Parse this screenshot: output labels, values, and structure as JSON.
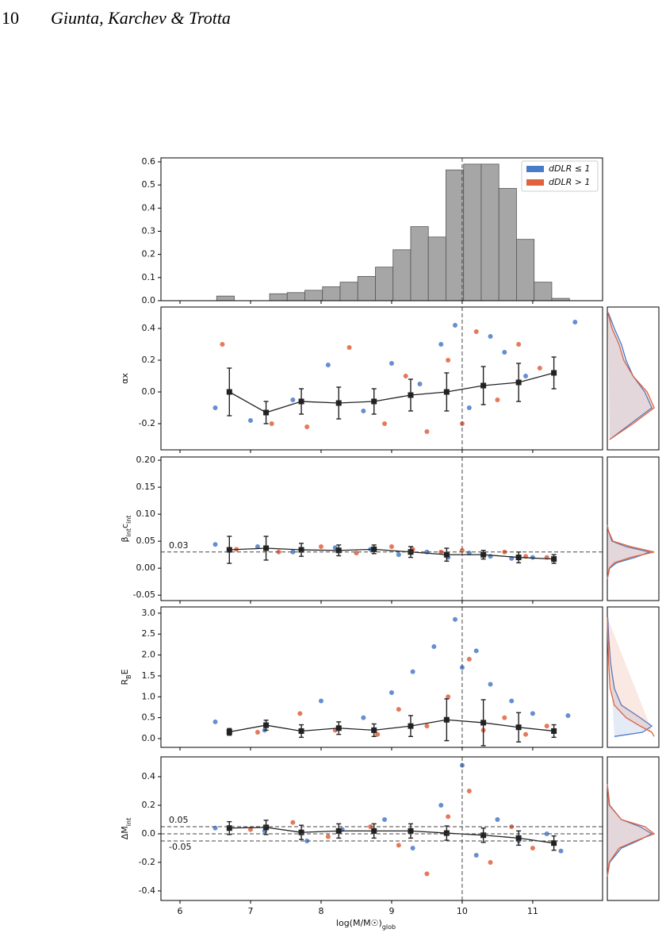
{
  "page_header": {
    "number": "10",
    "authors": "Giunta, Karchev & Trotta"
  },
  "chart_data": [
    {
      "type": "histogram",
      "color": "#a6a6a6",
      "bins": [
        6.52,
        6.77,
        7.02,
        7.27,
        7.52,
        7.77,
        8.02,
        8.27,
        8.52,
        8.77,
        9.02,
        9.27,
        9.52,
        9.77,
        10.02,
        10.27,
        10.52,
        10.77,
        11.02,
        11.27,
        11.52
      ],
      "values": [
        0.02,
        0,
        0,
        0.03,
        0.035,
        0.045,
        0.06,
        0.08,
        0.105,
        0.145,
        0.22,
        0.32,
        0.275,
        0.565,
        0.59,
        0.59,
        0.485,
        0.265,
        0.08,
        0.01
      ],
      "xlim": [
        5.73,
        11.99
      ],
      "xticks": [
        6,
        7,
        8,
        9,
        10,
        11
      ],
      "ylim": [
        0,
        0.617
      ],
      "yticks": [
        {
          "value": 0,
          "label": "0.0"
        },
        0.1,
        0.2,
        0.3,
        0.4,
        0.5,
        0.6
      ],
      "vline": 10,
      "legend": "upper right"
    },
    {
      "type": "scatter",
      "ylabel": [
        "αx"
      ],
      "xlim": [
        5.73,
        11.99
      ],
      "xticks": [
        6,
        7,
        8,
        9,
        10,
        11
      ],
      "ylim": [
        -0.365,
        0.535
      ],
      "yticks": [
        -0.2,
        {
          "value": 0,
          "label": "0.0"
        },
        0.2,
        0.4
      ],
      "vline": 10,
      "series": [
        {
          "name": "dDLR ≤ 1",
          "color": "#4a7bc8",
          "x": [
            6.5,
            7.0,
            7.6,
            8.1,
            8.6,
            9.0,
            9.4,
            9.7,
            9.9,
            10.1,
            10.4,
            10.6,
            10.9,
            11.6
          ],
          "values": [
            -0.1,
            -0.18,
            -0.05,
            0.17,
            -0.12,
            0.18,
            0.05,
            0.3,
            0.42,
            -0.1,
            0.35,
            0.25,
            0.1,
            0.44
          ]
        },
        {
          "name": "dDLR > 1",
          "color": "#e0623e",
          "x": [
            6.6,
            7.3,
            7.8,
            8.4,
            8.9,
            9.2,
            9.5,
            9.8,
            10.0,
            10.2,
            10.5,
            10.8,
            11.1
          ],
          "values": [
            0.3,
            -0.2,
            -0.22,
            0.28,
            -0.2,
            0.1,
            -0.25,
            0.2,
            -0.2,
            0.38,
            -0.05,
            0.3,
            0.15
          ]
        }
      ],
      "binned": {
        "color": "#222222",
        "x": [
          6.7,
          7.22,
          7.72,
          8.25,
          8.75,
          9.27,
          9.78,
          10.3,
          10.8,
          11.3
        ],
        "values": [
          0,
          -0.13,
          -0.06,
          -0.07,
          -0.06,
          -0.02,
          0,
          0.04,
          0.06,
          0.12
        ],
        "errors": [
          0.15,
          0.07,
          0.08,
          0.1,
          0.08,
          0.1,
          0.12,
          0.12,
          0.12,
          0.1
        ]
      },
      "kde": {
        "xlim": [
          0,
          1.1
        ],
        "y": [
          -0.3,
          -0.2,
          -0.1,
          0,
          0.1,
          0.2,
          0.3,
          0.4,
          0.5
        ],
        "series": [
          {
            "color": "#4a7bc8",
            "values": [
              0.05,
              0.5,
              0.95,
              0.8,
              0.55,
              0.4,
              0.3,
              0.15,
              0.02
            ]
          },
          {
            "color": "#e0623e",
            "values": [
              0.05,
              0.55,
              1.0,
              0.85,
              0.55,
              0.35,
              0.25,
              0.1,
              0.01
            ]
          }
        ]
      }
    },
    {
      "type": "scatter",
      "ylabel": [
        "β",
        "int",
        "c",
        "int"
      ],
      "xlim": [
        5.73,
        11.99
      ],
      "xticks": [
        6,
        7,
        8,
        9,
        10,
        11
      ],
      "ylim": [
        -0.06,
        0.206
      ],
      "yticks": [
        -0.05,
        {
          "value": 0,
          "label": "0.00"
        },
        0.05,
        {
          "value": 0.1,
          "label": "0.10"
        },
        0.15,
        {
          "value": 0.2,
          "label": "0.20"
        }
      ],
      "vline": 10,
      "labeled_hlines": [
        0.03
      ],
      "series": [
        {
          "color": "#4a7bc8",
          "x": [
            6.5,
            7.1,
            7.6,
            8.2,
            8.7,
            9.1,
            9.5,
            9.8,
            10.1,
            10.4,
            10.7,
            11.0
          ],
          "values": [
            0.044,
            0.04,
            0.03,
            0.038,
            0.035,
            0.025,
            0.03,
            0.02,
            0.028,
            0.022,
            0.018,
            0.02
          ]
        },
        {
          "color": "#e0623e",
          "x": [
            6.8,
            7.4,
            8.0,
            8.5,
            9.0,
            9.3,
            9.7,
            10.0,
            10.3,
            10.6,
            10.9,
            11.2
          ],
          "values": [
            0.035,
            0.03,
            0.04,
            0.028,
            0.04,
            0.035,
            0.03,
            0.033,
            0.025,
            0.03,
            0.022,
            0.02
          ]
        }
      ],
      "binned": {
        "color": "#222222",
        "x": [
          6.7,
          7.22,
          7.72,
          8.25,
          8.75,
          9.27,
          9.78,
          10.3,
          10.8,
          11.3
        ],
        "values": [
          0.034,
          0.037,
          0.034,
          0.033,
          0.035,
          0.03,
          0.025,
          0.025,
          0.02,
          0.017
        ],
        "errors": [
          0.025,
          0.022,
          0.012,
          0.01,
          0.008,
          0.01,
          0.012,
          0.008,
          0.01,
          0.008
        ]
      },
      "kde": {
        "xlim": [
          0,
          1.1
        ],
        "y": [
          -0.02,
          0,
          0.01,
          0.02,
          0.03,
          0.04,
          0.05,
          0.07,
          0.08
        ],
        "series": [
          {
            "color": "#4a7bc8",
            "values": [
              0,
              0.05,
              0.2,
              0.6,
              0.9,
              0.4,
              0.1,
              0.02,
              0
            ]
          },
          {
            "color": "#e0623e",
            "values": [
              0,
              0.04,
              0.15,
              0.5,
              1.0,
              0.5,
              0.12,
              0.02,
              0
            ]
          }
        ]
      }
    },
    {
      "type": "scatter",
      "ylabel": [
        "R",
        "B",
        "E"
      ],
      "xlim": [
        5.73,
        11.99
      ],
      "xticks": [
        6,
        7,
        8,
        9,
        10,
        11
      ],
      "ylim": [
        -0.21,
        3.15
      ],
      "yticks": [
        {
          "value": 0,
          "label": "0.0"
        },
        0.5,
        {
          "value": 1,
          "label": "1.0"
        },
        1.5,
        {
          "value": 2,
          "label": "2.0"
        },
        2.5,
        {
          "value": 3,
          "label": "3.0"
        }
      ],
      "vline": 10,
      "series": [
        {
          "color": "#4a7bc8",
          "x": [
            6.5,
            7.2,
            8.0,
            8.6,
            9.0,
            9.3,
            9.6,
            9.9,
            10.0,
            10.2,
            10.4,
            10.7,
            11.0,
            11.5
          ],
          "values": [
            0.4,
            0.2,
            0.9,
            0.5,
            1.1,
            1.6,
            2.2,
            2.85,
            1.7,
            2.1,
            1.3,
            0.9,
            0.6,
            0.55
          ]
        },
        {
          "color": "#e0623e",
          "x": [
            7.1,
            7.7,
            8.2,
            8.8,
            9.1,
            9.5,
            9.8,
            10.1,
            10.3,
            10.6,
            10.9,
            11.2
          ],
          "values": [
            0.15,
            0.6,
            0.2,
            0.1,
            0.7,
            0.3,
            1.0,
            1.9,
            0.2,
            0.5,
            0.1,
            0.3
          ]
        }
      ],
      "binned": {
        "color": "#222222",
        "x": [
          6.7,
          7.22,
          7.72,
          8.25,
          8.75,
          9.27,
          9.78,
          10.3,
          10.8,
          11.3
        ],
        "values": [
          0.16,
          0.32,
          0.18,
          0.25,
          0.2,
          0.3,
          0.45,
          0.38,
          0.27,
          0.18
        ],
        "errors": [
          0.08,
          0.12,
          0.15,
          0.15,
          0.15,
          0.25,
          0.5,
          0.55,
          0.35,
          0.15
        ]
      },
      "kde": {
        "xlim": [
          0,
          1.1
        ],
        "y": [
          0.05,
          0.15,
          0.3,
          0.5,
          0.8,
          1.2,
          1.8,
          2.4,
          2.9
        ],
        "series": [
          {
            "color": "#4a7bc8",
            "values": [
              0.15,
              0.75,
              0.95,
              0.7,
              0.3,
              0.15,
              0.07,
              0.03,
              0.01
            ]
          },
          {
            "color": "#e0623e",
            "values": [
              1.0,
              0.95,
              0.7,
              0.4,
              0.15,
              0.06,
              0.03,
              0.01,
              0
            ]
          }
        ]
      }
    },
    {
      "type": "scatter",
      "ylabel": [
        "ΔM",
        "int"
      ],
      "xlabel": [
        "log(M/M☉)",
        "glob"
      ],
      "xlim": [
        5.73,
        11.99
      ],
      "xticks": [
        6,
        7,
        8,
        9,
        10,
        11
      ],
      "xtick_labels": true,
      "ylim": [
        -0.467,
        0.539
      ],
      "yticks": [
        -0.4,
        -0.2,
        {
          "value": 0,
          "label": "0.0"
        },
        0.2,
        0.4
      ],
      "vline": 10,
      "labeled_hlines": [
        0.05,
        -0.05
      ],
      "hlines": [
        0
      ],
      "series": [
        {
          "color": "#4a7bc8",
          "x": [
            6.5,
            7.2,
            7.8,
            8.3,
            8.9,
            9.3,
            9.7,
            10.0,
            10.2,
            10.5,
            10.8,
            11.2,
            11.4
          ],
          "values": [
            0.04,
            0.02,
            -0.05,
            0.03,
            0.1,
            -0.1,
            0.2,
            0.48,
            -0.15,
            0.1,
            -0.05,
            0,
            -0.12
          ]
        },
        {
          "color": "#e0623e",
          "x": [
            7.0,
            7.6,
            8.1,
            8.7,
            9.1,
            9.5,
            9.8,
            10.1,
            10.4,
            10.7,
            11.0
          ],
          "values": [
            0.03,
            0.08,
            -0.02,
            0.05,
            -0.08,
            -0.28,
            0.12,
            0.3,
            -0.2,
            0.05,
            -0.1
          ]
        }
      ],
      "binned": {
        "color": "#222222",
        "x": [
          6.7,
          7.22,
          7.72,
          8.25,
          8.75,
          9.27,
          9.78,
          10.3,
          10.8,
          11.3
        ],
        "values": [
          0.04,
          0.045,
          0.01,
          0.02,
          0.02,
          0.02,
          0.005,
          -0.01,
          -0.03,
          -0.065
        ],
        "errors": [
          0.045,
          0.05,
          0.05,
          0.05,
          0.05,
          0.05,
          0.05,
          0.05,
          0.05,
          0.05
        ]
      },
      "kde": {
        "xlim": [
          0,
          1.1
        ],
        "y": [
          -0.3,
          -0.2,
          -0.1,
          -0.05,
          0,
          0.05,
          0.1,
          0.2,
          0.35
        ],
        "series": [
          {
            "color": "#4a7bc8",
            "values": [
              0,
              0.05,
              0.3,
              0.65,
              0.95,
              0.7,
              0.3,
              0.05,
              0
            ]
          },
          {
            "color": "#e0623e",
            "values": [
              0,
              0.04,
              0.25,
              0.6,
              1.0,
              0.8,
              0.3,
              0.04,
              0
            ]
          }
        ]
      }
    }
  ]
}
